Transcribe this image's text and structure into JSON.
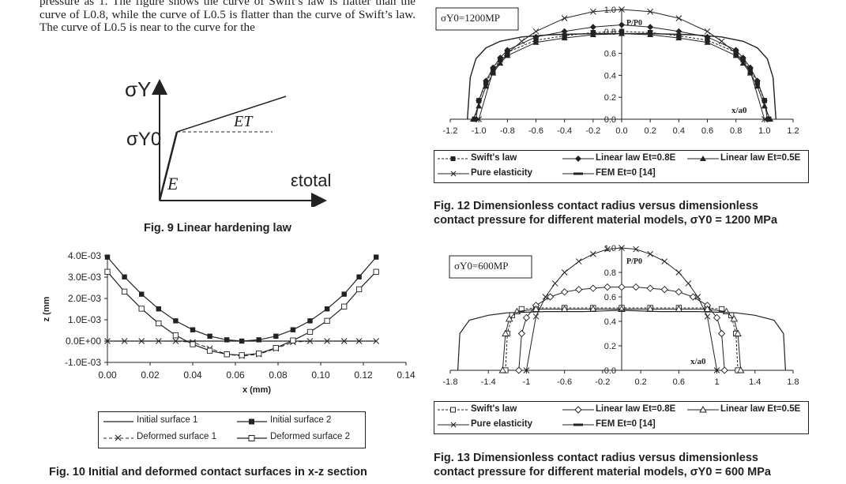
{
  "body_text": "pressure as 1. The figure shows the curve of Swift’s law is flatter than the curve of L0.8, while the curve of L0.5 is flatter than the curve of Swift’s law. The curve of L0.5 is near to the curve for the",
  "fig9": {
    "caption": "Fig. 9   Linear hardening law",
    "axis_y": "σY",
    "axis_x": "εtotal",
    "label_yield": "σY0",
    "label_E": "E",
    "label_ET": "ET"
  },
  "fig12": {
    "caption_line1": "Fig. 12   Dimensionless contact radius versus dimensionless",
    "caption_line2": "contact pressure for different material models, σY0 = 1200 MPa",
    "box_label": "σY0=1200MP",
    "legend": [
      "Swift's law",
      "Linear law Et=0.8E",
      "Linear law Et=0.5E",
      "Pure elasticity",
      "FEM Et=0 [14]"
    ]
  },
  "fig13": {
    "caption_line1": "Fig. 13   Dimensionless contact radius versus dimensionless",
    "caption_line2": "contact pressure for different material models, σY0 = 600 MPa",
    "box_label": "σY0=600MP",
    "legend": [
      "Swift's law",
      "Linear law Et=0.8E",
      "Linear law Et=0.5E",
      "Pure elasticity",
      "FEM Et=0 [14]"
    ]
  },
  "fig10": {
    "caption": "Fig. 10   Initial and deformed contact surfaces in x-z section",
    "legend": [
      "Initial surface 1",
      "Initial surface 2",
      "Deformed surface 1",
      "Deformed surface 2"
    ]
  },
  "chart_data": [
    {
      "id": "fig12",
      "type": "line",
      "xlabel": "x/a0",
      "ylabel": "P/P0",
      "xlim": [
        -1.2,
        1.2
      ],
      "ylim": [
        0,
        1.0
      ],
      "x_ticks": [
        "-1.2",
        "-1.0",
        "-0.8",
        "-0.6",
        "-0.4",
        "-0.2",
        "0.0",
        "0.2",
        "0.4",
        "0.6",
        "0.8",
        "1.0",
        "1.2"
      ],
      "y_ticks": [
        "0.0",
        "0.2",
        "0.4",
        "0.6",
        "0.8",
        "1.0"
      ],
      "series": [
        {
          "name": "Swift's law",
          "x": [
            -1.03,
            -1.0,
            -0.95,
            -0.9,
            -0.85,
            -0.8,
            -0.6,
            -0.4,
            -0.2,
            0,
            0.2,
            0.4,
            0.6,
            0.8,
            0.85,
            0.9,
            0.95,
            1.0,
            1.03
          ],
          "y": [
            0,
            0.17,
            0.33,
            0.45,
            0.54,
            0.61,
            0.72,
            0.76,
            0.79,
            0.8,
            0.79,
            0.76,
            0.72,
            0.61,
            0.54,
            0.45,
            0.33,
            0.17,
            0
          ]
        },
        {
          "name": "Linear law Et=0.8E",
          "x": [
            -1.02,
            -1.0,
            -0.95,
            -0.9,
            -0.85,
            -0.8,
            -0.6,
            -0.4,
            -0.2,
            0,
            0.2,
            0.4,
            0.6,
            0.8,
            0.85,
            0.9,
            0.95,
            1.0,
            1.02
          ],
          "y": [
            0,
            0.17,
            0.35,
            0.47,
            0.56,
            0.63,
            0.75,
            0.8,
            0.84,
            0.86,
            0.84,
            0.8,
            0.75,
            0.63,
            0.56,
            0.47,
            0.35,
            0.17,
            0
          ]
        },
        {
          "name": "Linear law Et=0.5E",
          "x": [
            -1.04,
            -1.0,
            -0.95,
            -0.9,
            -0.85,
            -0.8,
            -0.6,
            -0.4,
            -0.2,
            0,
            0.2,
            0.4,
            0.6,
            0.8,
            0.85,
            0.9,
            0.95,
            1.0,
            1.04
          ],
          "y": [
            0,
            0.12,
            0.3,
            0.42,
            0.51,
            0.58,
            0.7,
            0.74,
            0.77,
            0.78,
            0.77,
            0.74,
            0.7,
            0.58,
            0.51,
            0.42,
            0.3,
            0.12,
            0
          ]
        },
        {
          "name": "Pure elasticity",
          "x": [
            -1.0,
            -0.9,
            -0.8,
            -0.7,
            -0.6,
            -0.4,
            -0.2,
            0,
            0.2,
            0.4,
            0.6,
            0.7,
            0.8,
            0.9,
            1.0
          ],
          "y": [
            0,
            0.44,
            0.6,
            0.71,
            0.8,
            0.92,
            0.98,
            1.0,
            0.98,
            0.92,
            0.8,
            0.71,
            0.6,
            0.44,
            0
          ]
        },
        {
          "name": "FEM Et=0 [14]",
          "x": [
            -1.08,
            -1.06,
            -1.02,
            -0.95,
            -0.85,
            -0.7,
            -0.5,
            -0.2,
            0,
            0.2,
            0.5,
            0.7,
            0.85,
            0.95,
            1.02,
            1.06,
            1.08
          ],
          "y": [
            0,
            0.38,
            0.55,
            0.65,
            0.71,
            0.75,
            0.77,
            0.78,
            0.78,
            0.78,
            0.77,
            0.75,
            0.71,
            0.65,
            0.55,
            0.38,
            0
          ]
        }
      ]
    },
    {
      "id": "fig13",
      "type": "line",
      "xlabel": "x/a0",
      "ylabel": "P/P0",
      "xlim": [
        -1.8,
        1.8
      ],
      "ylim": [
        0,
        1.0
      ],
      "x_ticks": [
        "-1.8",
        "-1.4",
        "-1",
        "-0.6",
        "-0.2",
        "0.2",
        "0.6",
        "1",
        "1.4",
        "1.8"
      ],
      "y_ticks": [
        "0.0",
        "0.2",
        "0.4",
        "0.6",
        "0.8",
        "1.0"
      ],
      "series": [
        {
          "name": "Swift's law",
          "x": [
            -1.22,
            -1.2,
            -1.15,
            -1.05,
            -0.9,
            -0.6,
            -0.3,
            0,
            0.3,
            0.6,
            0.9,
            1.05,
            1.15,
            1.2,
            1.22
          ],
          "y": [
            0,
            0.3,
            0.45,
            0.5,
            0.51,
            0.51,
            0.51,
            0.51,
            0.51,
            0.51,
            0.51,
            0.5,
            0.45,
            0.3,
            0
          ]
        },
        {
          "name": "Linear law Et=0.8E",
          "x": [
            -1.08,
            -1.05,
            -1.0,
            -0.9,
            -0.75,
            -0.6,
            -0.45,
            -0.3,
            -0.15,
            0,
            0.15,
            0.3,
            0.45,
            0.6,
            0.75,
            0.9,
            1.0,
            1.05,
            1.08
          ],
          "y": [
            0,
            0.3,
            0.43,
            0.53,
            0.6,
            0.64,
            0.66,
            0.67,
            0.68,
            0.68,
            0.68,
            0.67,
            0.66,
            0.64,
            0.6,
            0.53,
            0.43,
            0.3,
            0
          ]
        },
        {
          "name": "Linear law Et=0.5E",
          "x": [
            -1.25,
            -1.22,
            -1.18,
            -1.1,
            -0.9,
            -0.6,
            -0.3,
            0,
            0.3,
            0.6,
            0.9,
            1.1,
            1.18,
            1.22,
            1.25
          ],
          "y": [
            0,
            0.3,
            0.42,
            0.48,
            0.5,
            0.5,
            0.5,
            0.5,
            0.5,
            0.5,
            0.5,
            0.48,
            0.42,
            0.3,
            0
          ]
        },
        {
          "name": "Pure elasticity",
          "x": [
            -1.0,
            -0.9,
            -0.8,
            -0.7,
            -0.6,
            -0.45,
            -0.3,
            -0.15,
            0,
            0.15,
            0.3,
            0.45,
            0.6,
            0.7,
            0.8,
            0.9,
            1.0
          ],
          "y": [
            0,
            0.44,
            0.6,
            0.71,
            0.8,
            0.89,
            0.95,
            0.99,
            1.0,
            0.99,
            0.95,
            0.89,
            0.8,
            0.71,
            0.6,
            0.44,
            0
          ]
        },
        {
          "name": "FEM Et=0 [14]",
          "x": [
            -1.72,
            -1.7,
            -1.6,
            -1.4,
            -1.2,
            -0.8,
            -0.4,
            0,
            0.4,
            0.8,
            1.2,
            1.4,
            1.6,
            1.7,
            1.72
          ],
          "y": [
            0,
            0.3,
            0.41,
            0.45,
            0.47,
            0.48,
            0.48,
            0.49,
            0.48,
            0.48,
            0.47,
            0.45,
            0.41,
            0.3,
            0
          ]
        }
      ]
    },
    {
      "id": "fig10",
      "type": "line",
      "xlabel": "x (mm)",
      "ylabel": "z (mm",
      "xlim": [
        0,
        0.14
      ],
      "ylim": [
        -0.001,
        0.004
      ],
      "x_ticks": [
        "0.00",
        "0.02",
        "0.04",
        "0.06",
        "0.08",
        "0.10",
        "0.12",
        "0.14"
      ],
      "y_ticks": [
        "-1.0E-03",
        "0.0E+00",
        "1.0E-03",
        "2.0E-03",
        "3.0E-03",
        "4.0E-03"
      ],
      "series": [
        {
          "name": "Initial surface 1",
          "x": [
            0,
            0.126
          ],
          "y": [
            0,
            0
          ]
        },
        {
          "name": "Initial surface 2",
          "x": [
            0,
            0.008,
            0.016,
            0.024,
            0.032,
            0.04,
            0.048,
            0.056,
            0.063,
            0.071,
            0.079,
            0.087,
            0.095,
            0.103,
            0.111,
            0.118,
            0.126
          ],
          "y": [
            0.00394,
            0.00301,
            0.0022,
            0.00151,
            0.00095,
            0.00053,
            0.00023,
            6e-05,
            0,
            6e-05,
            0.00023,
            0.00053,
            0.00095,
            0.00151,
            0.0022,
            0.00301,
            0.00394
          ]
        },
        {
          "name": "Deformed surface 1",
          "x": [
            0,
            0.008,
            0.016,
            0.024,
            0.032,
            0.04,
            0.048,
            0.056,
            0.063,
            0.071,
            0.079,
            0.087,
            0.095,
            0.103,
            0.111,
            0.118,
            0.126
          ],
          "y": [
            0,
            0,
            0,
            0,
            0,
            -5e-05,
            -0.00035,
            -0.00062,
            -0.0007,
            -0.00062,
            -0.00035,
            -5e-05,
            0,
            0,
            0,
            0,
            0
          ]
        },
        {
          "name": "Deformed surface 2",
          "x": [
            0,
            0.008,
            0.016,
            0.024,
            0.032,
            0.04,
            0.048,
            0.056,
            0.063,
            0.071,
            0.079,
            0.087,
            0.095,
            0.103,
            0.111,
            0.118,
            0.126
          ],
          "y": [
            0.00325,
            0.00232,
            0.00152,
            0.00083,
            0.00027,
            -0.00015,
            -0.00045,
            -0.00062,
            -0.00066,
            -0.00058,
            -0.00032,
            3e-05,
            0.00043,
            0.00095,
            0.00162,
            0.00243,
            0.00325
          ]
        }
      ]
    }
  ]
}
